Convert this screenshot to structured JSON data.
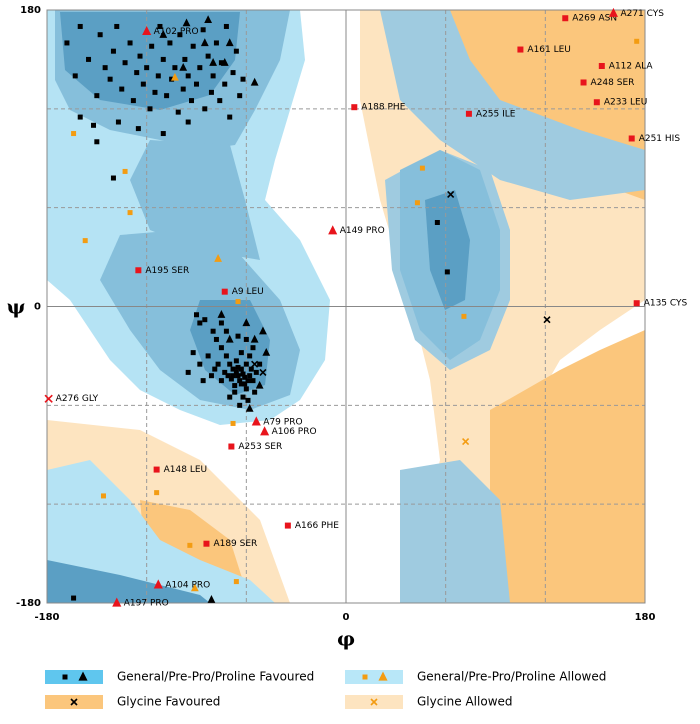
{
  "chart_data": {
    "type": "scatter",
    "x_label": "φ",
    "y_label": "ψ",
    "xlim": [
      -180,
      180
    ],
    "ylim": [
      -180,
      180
    ],
    "xticks": [
      -180,
      0,
      180
    ],
    "yticks": [
      -180,
      0,
      180
    ],
    "xgrid": [
      -120,
      -60,
      60,
      120
    ],
    "ygrid": [
      -120,
      -60,
      60,
      120
    ],
    "groups": [
      {
        "marker": "square",
        "color": "#000000",
        "x": [
          -168,
          -163,
          -160,
          -155,
          -150,
          -148,
          -145,
          -142,
          -140,
          -138,
          -135,
          -133,
          -130,
          -128,
          -126,
          -124,
          -122,
          -120,
          -118,
          -117,
          -115,
          -113,
          -112,
          -110,
          -108,
          -106,
          -105,
          -103,
          -101,
          -100,
          -98,
          -97,
          -95,
          -93,
          -92,
          -90,
          -88,
          -86,
          -85,
          -83,
          -81,
          -80,
          -78,
          -76,
          -75,
          -73,
          -72,
          -70,
          -68,
          -66,
          -64,
          -62,
          -160,
          -152,
          -137,
          -125,
          -110,
          -95,
          -140,
          -150,
          -90,
          -88,
          -85,
          -80,
          -78,
          -75,
          -72,
          -70,
          -68,
          -66,
          -65,
          -64,
          -63,
          -62,
          -61,
          -60,
          -60,
          -58,
          -57,
          -56,
          -55,
          -67,
          -69,
          -71,
          -73,
          -75,
          -77,
          -79,
          -81,
          -83,
          -62,
          -59,
          -64,
          -70,
          -66,
          -63,
          -58,
          -54,
          -52,
          -56,
          -60,
          -65,
          -72,
          -75,
          -86,
          -88,
          -92,
          -95,
          -67,
          -61,
          -63,
          -65,
          -68,
          -59,
          55,
          61,
          -164
        ],
        "y": [
          160,
          140,
          170,
          150,
          128,
          165,
          145,
          138,
          155,
          170,
          132,
          148,
          160,
          125,
          142,
          152,
          135,
          145,
          120,
          158,
          130,
          140,
          170,
          150,
          128,
          160,
          138,
          145,
          118,
          165,
          132,
          150,
          140,
          125,
          158,
          135,
          145,
          168,
          120,
          152,
          130,
          140,
          160,
          125,
          148,
          135,
          170,
          115,
          142,
          155,
          128,
          138,
          115,
          110,
          112,
          108,
          105,
          112,
          78,
          100,
          -5,
          -10,
          -8,
          -15,
          -20,
          -25,
          -30,
          -35,
          -38,
          -40,
          -42,
          -45,
          -38,
          -41,
          -47,
          -35,
          -50,
          -42,
          -38,
          -45,
          -52,
          -48,
          -44,
          -42,
          -40,
          -45,
          -35,
          -38,
          -42,
          -30,
          -55,
          -57,
          -60,
          -55,
          -33,
          -28,
          -30,
          -40,
          -35,
          -25,
          -20,
          -18,
          -15,
          -10,
          -45,
          -35,
          -28,
          -40,
          -52,
          -43,
          -47,
          -37,
          -42,
          -45,
          51,
          21,
          -177
        ]
      },
      {
        "marker": "triangle",
        "color": "#000000",
        "x": [
          -110,
          -96,
          -85,
          -80,
          -73,
          -70,
          -55,
          -98,
          -83,
          -50,
          -55,
          -60,
          -48,
          -52,
          -58,
          -70,
          -75,
          -81
        ],
        "y": [
          165,
          172,
          160,
          148,
          148,
          160,
          136,
          145,
          174,
          -15,
          -20,
          -10,
          -28,
          -48,
          -62,
          -20,
          -5,
          -178
        ]
      },
      {
        "marker": "cross",
        "color": "#000000",
        "x": [
          63,
          121,
          -55,
          -50
        ],
        "y": [
          68,
          -8,
          -35,
          -40
        ]
      },
      {
        "marker": "square",
        "color": "#f39c12",
        "x": [
          -164,
          -133,
          -130,
          -157,
          -65,
          -68,
          -146,
          -114,
          -94,
          -66,
          46,
          43,
          71,
          175
        ],
        "y": [
          105,
          82,
          57,
          40,
          3,
          -71,
          -115,
          -113,
          -145,
          -167,
          84,
          63,
          -6,
          161
        ]
      },
      {
        "marker": "triangle",
        "color": "#f39c12",
        "x": [
          -103,
          -77,
          -91
        ],
        "y": [
          139,
          29,
          -171
        ]
      },
      {
        "marker": "cross",
        "color": "#f39c12",
        "x": [
          72
        ],
        "y": [
          -82
        ]
      }
    ],
    "outliers": {
      "color": "#e8141c",
      "markers": [
        "triangle",
        "square",
        "triangle",
        "square",
        "square",
        "square",
        "square",
        "square",
        "square",
        "square",
        "triangle",
        "square",
        "square",
        "square",
        "cross",
        "triangle",
        "triangle",
        "square",
        "square",
        "square",
        "square",
        "triangle",
        "triangle"
      ],
      "x": [
        -120,
        132,
        161,
        105,
        154,
        143,
        151,
        172,
        5,
        74,
        -8,
        -125,
        -73,
        175,
        -179,
        -54,
        -49,
        -69,
        -114,
        -35,
        -84,
        -113,
        -138
      ],
      "y": [
        167,
        175,
        178,
        156,
        146,
        136,
        124,
        102,
        121,
        117,
        46,
        22,
        9,
        2,
        -56,
        -70,
        -76,
        -85,
        -99,
        -133,
        -144,
        -169,
        -180
      ],
      "labels": [
        "A102 PRO",
        "A269 ASN",
        "A271 CYS",
        "A161 LEU",
        "A112 ALA",
        "A248 SER",
        "A233 LEU",
        "A251 HIS",
        "A188 PHE",
        "A255 ILE",
        "A149 PRO",
        "A195 SER",
        "A9 LEU",
        "A135 CYS",
        "A276 GLY",
        "A79 PRO",
        "A106 PRO",
        "A253 SER",
        "A148 LEU",
        "A166 PHE",
        "A189 SER",
        "A104 PRO",
        "A197 PRO"
      ]
    },
    "legend": [
      {
        "label": "General/Pre-Pro/Proline Favoured",
        "swatch": "#5fc6ee",
        "marker_color": "#000000",
        "markers": [
          "square",
          "triangle"
        ]
      },
      {
        "label": "General/Pre-Pro/Proline Allowed",
        "swatch": "#b8e7f8",
        "marker_color": "#f39c12",
        "markers": [
          "square",
          "triangle"
        ]
      },
      {
        "label": "Glycine Favoured",
        "swatch": "#fbc67c",
        "marker_color": "#000000",
        "markers": [
          "cross"
        ]
      },
      {
        "label": "Glycine Allowed",
        "swatch": "#fde4c0",
        "marker_color": "#f39c12",
        "markers": [
          "cross"
        ]
      }
    ]
  }
}
